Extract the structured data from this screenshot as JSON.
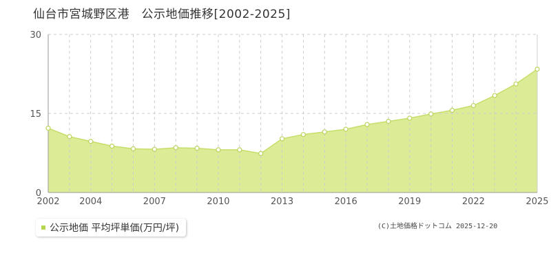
{
  "title": "仙台市宮城野区港　公示地価推移[2002-2025]",
  "legend": {
    "label": "公示地価 平均坪単価(万円/坪)"
  },
  "credit": "(C)土地価格ドットコム 2025-12-20",
  "colors": {
    "area_fill": "#dbeb96",
    "line": "#c6de6a",
    "point_stroke": "#b9d45a",
    "point_fill": "#ffffff",
    "grid": "#cccccc",
    "axis": "#999999"
  },
  "chart_data": {
    "type": "area",
    "title": "仙台市宮城野区港　公示地価推移[2002-2025]",
    "xlabel": "",
    "ylabel": "",
    "xlim": [
      2002,
      2025
    ],
    "ylim": [
      0,
      30
    ],
    "yticks": [
      0,
      15,
      30
    ],
    "xtick_labels": [
      "2002",
      "2004",
      "2007",
      "2010",
      "2013",
      "2016",
      "2019",
      "2022",
      "2025"
    ],
    "grid": true,
    "legend_position": "bottom-left",
    "series": [
      {
        "name": "公示地価 平均坪単価(万円/坪)",
        "x": [
          2002,
          2003,
          2004,
          2005,
          2006,
          2007,
          2008,
          2009,
          2010,
          2011,
          2012,
          2013,
          2014,
          2015,
          2016,
          2017,
          2018,
          2019,
          2020,
          2021,
          2022,
          2023,
          2024,
          2025
        ],
        "values": [
          12.2,
          10.6,
          9.7,
          8.8,
          8.3,
          8.2,
          8.5,
          8.4,
          8.1,
          8.1,
          7.4,
          10.2,
          11.0,
          11.5,
          12.0,
          12.9,
          13.5,
          14.1,
          14.9,
          15.6,
          16.5,
          18.4,
          20.6,
          23.4
        ]
      }
    ]
  }
}
